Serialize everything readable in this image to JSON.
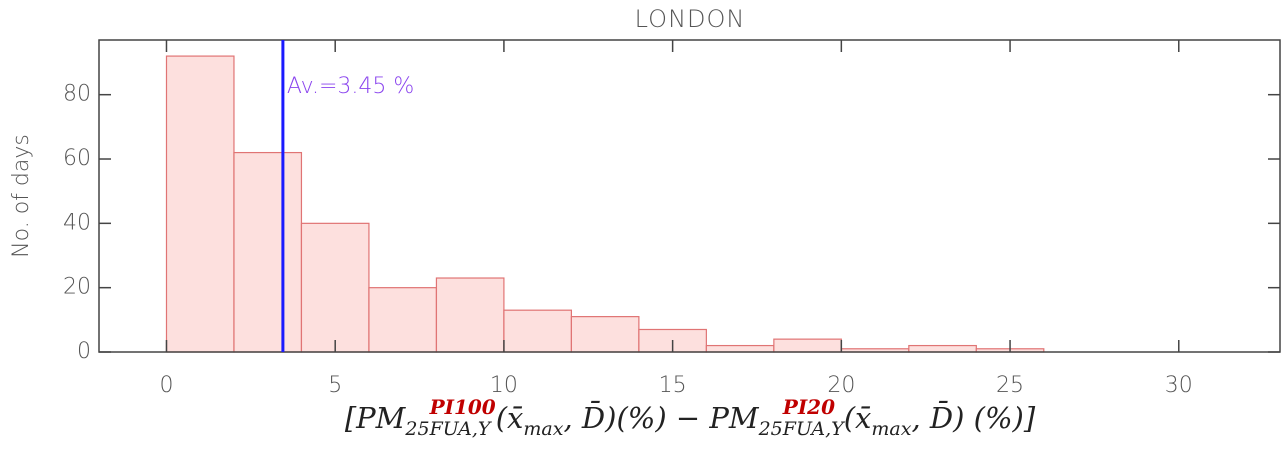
{
  "chart_data": {
    "type": "histogram",
    "title": "LONDON",
    "y_label": "No. of days",
    "x_label_parts": [
      "[PM",
      "25",
      "PI100",
      "FUA,Y",
      "(x̄",
      "max",
      ", D̄)(%) − PM",
      "25",
      "PI20",
      "FUA,Y",
      "(x̄",
      "max",
      ", D̄) (%)]"
    ],
    "bins": [
      0,
      2,
      4,
      6,
      8,
      10,
      12,
      14,
      16,
      18,
      20,
      22,
      24,
      26,
      28,
      30,
      32
    ],
    "counts": [
      92,
      62,
      40,
      20,
      23,
      13,
      11,
      7,
      2,
      4,
      1,
      2,
      1,
      0,
      0,
      0
    ],
    "color": "#fde0de",
    "edge_color": "#e07474",
    "xlim": [
      -2,
      33
    ],
    "ylim": [
      0,
      97
    ],
    "xticks": [
      0,
      5,
      10,
      15,
      20,
      25,
      30
    ],
    "yticks": [
      0,
      20,
      40,
      60,
      80
    ],
    "mean": {
      "value": 3.45,
      "label": "Av.=3.45 %",
      "color": "#1a1aff",
      "label_color": "#8a44ee"
    }
  }
}
